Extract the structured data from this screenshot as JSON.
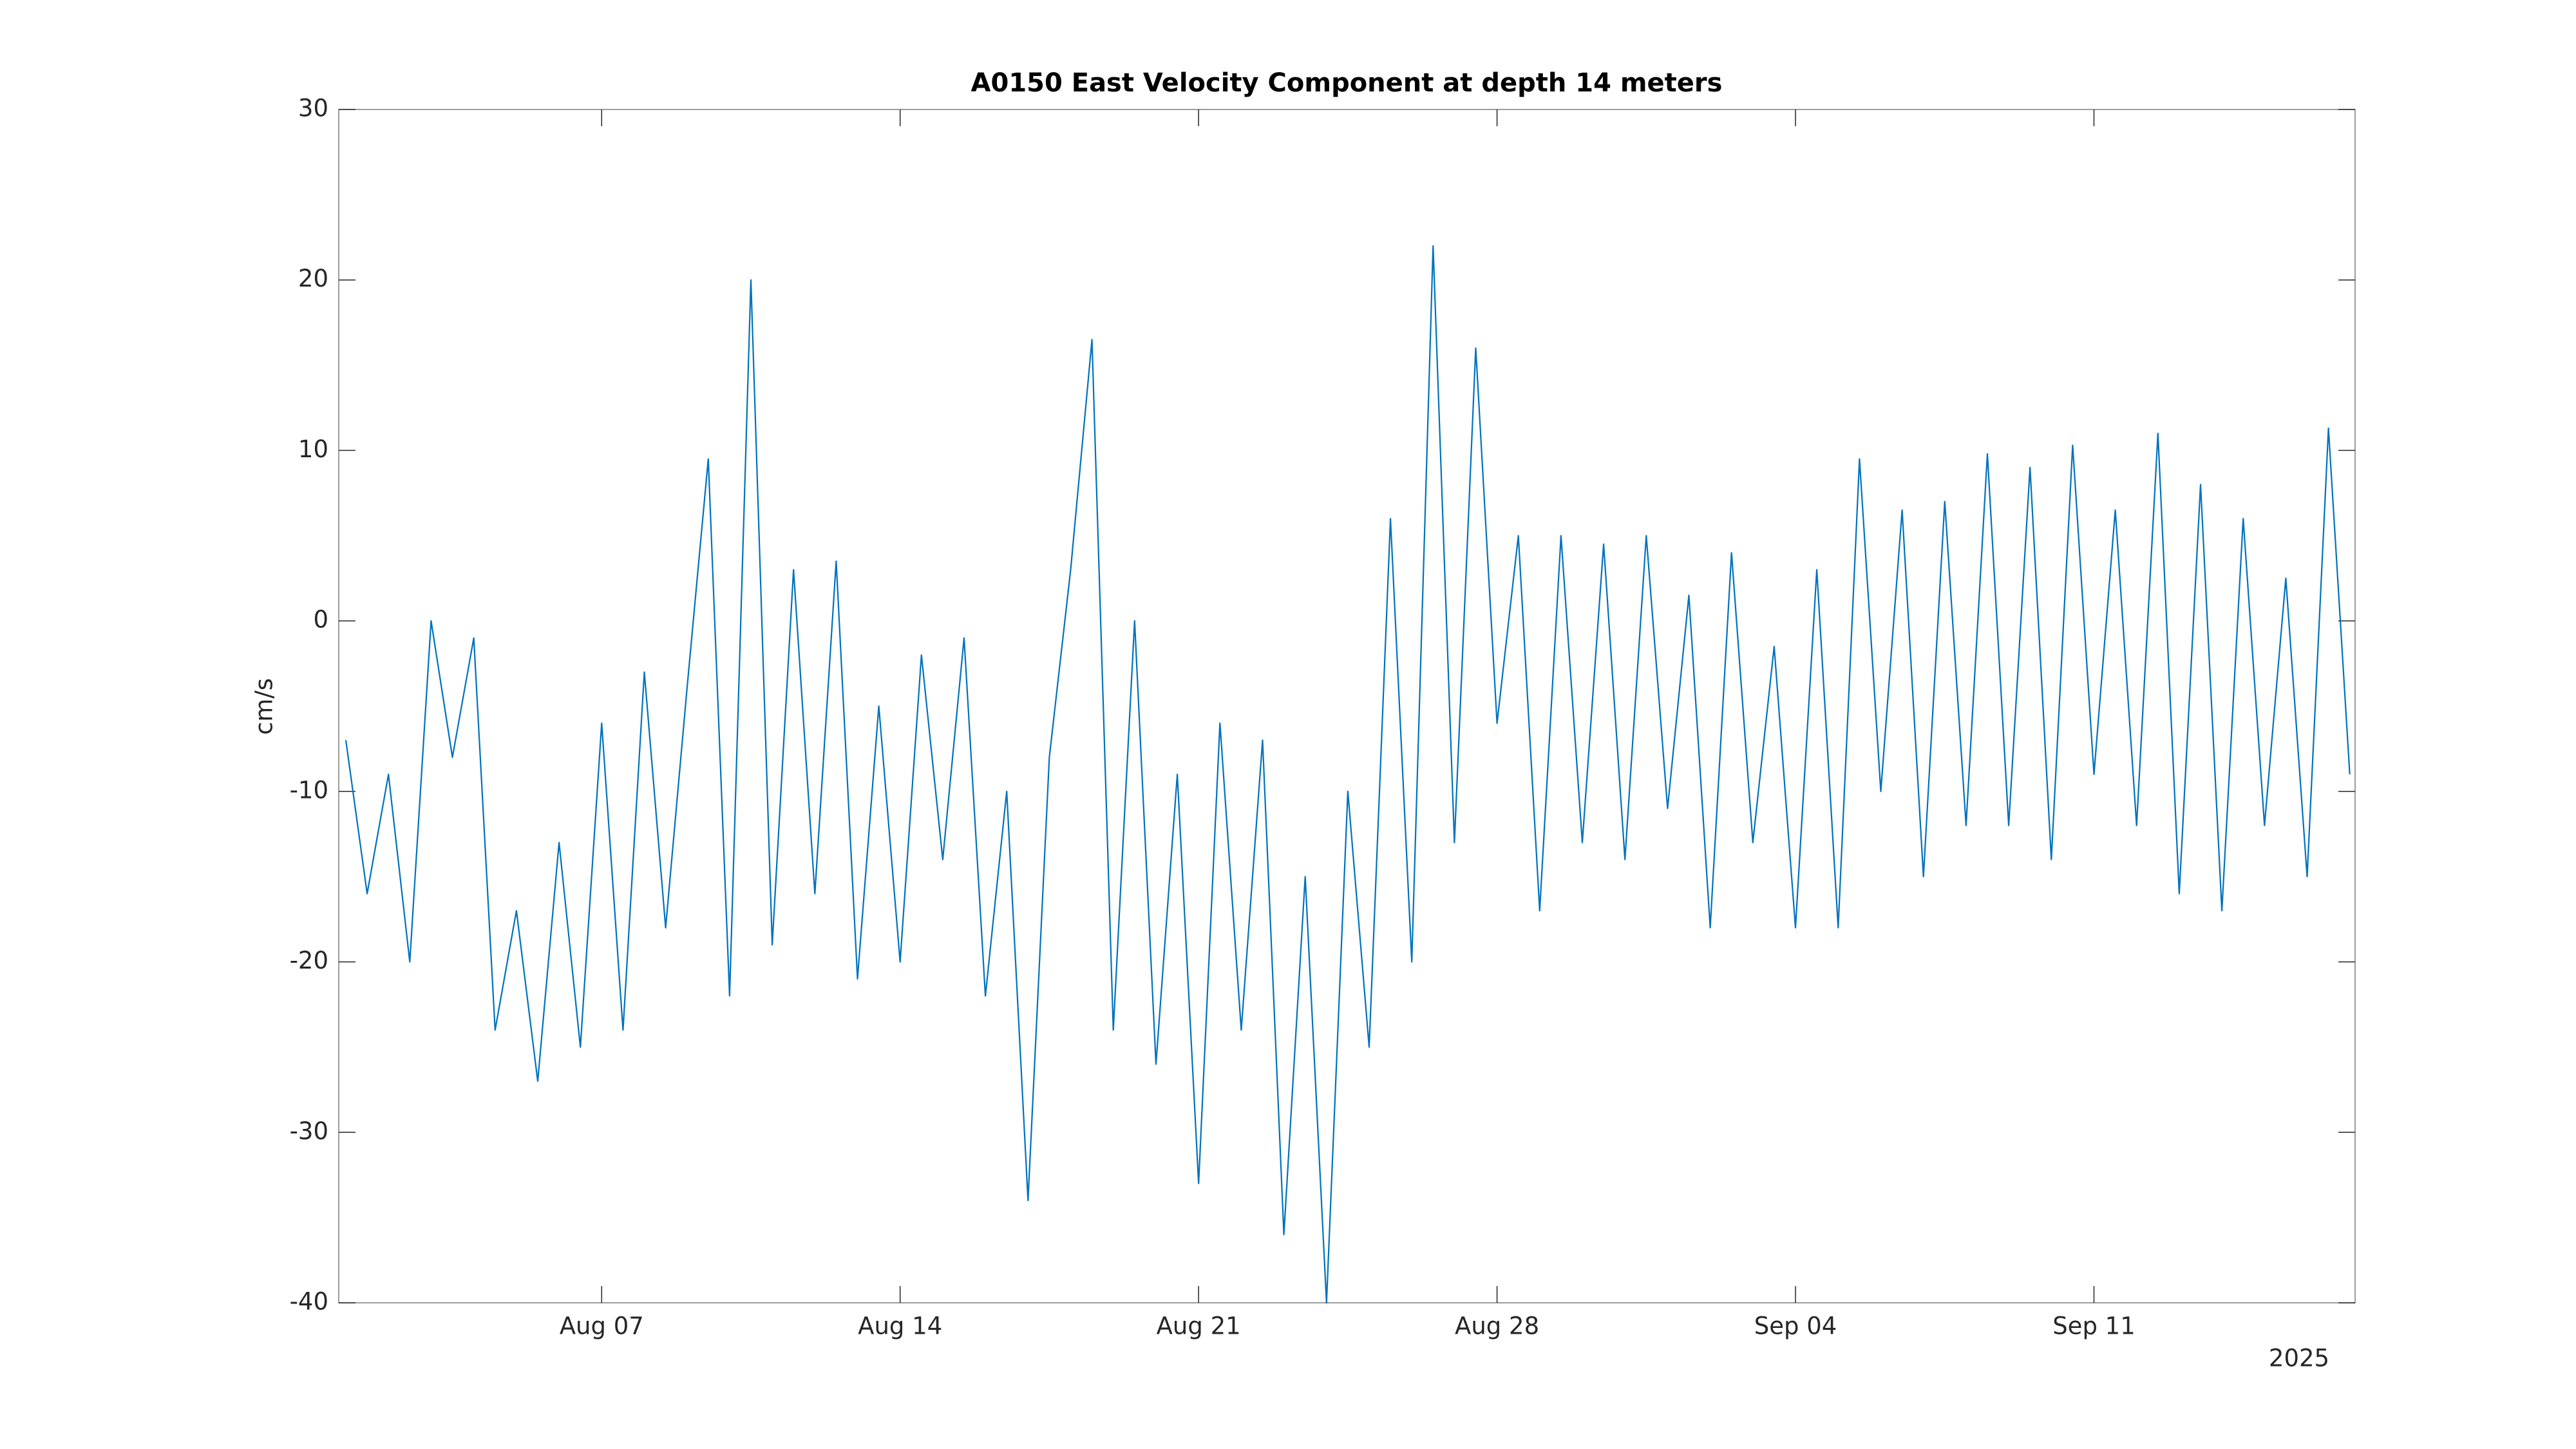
{
  "chart_data": {
    "type": "line",
    "title": "A0150 East Velocity Component at depth 14 meters",
    "ylabel": "cm/s",
    "x_secondary_label": "2025",
    "color": "#0072bd",
    "x": [
      "2025-08-01T00:00",
      "2025-08-01T12:00",
      "2025-08-02T00:00",
      "2025-08-02T12:00",
      "2025-08-03T00:00",
      "2025-08-03T12:00",
      "2025-08-04T00:00",
      "2025-08-04T12:00",
      "2025-08-05T00:00",
      "2025-08-05T12:00",
      "2025-08-06T00:00",
      "2025-08-06T12:00",
      "2025-08-07T00:00",
      "2025-08-07T12:00",
      "2025-08-08T00:00",
      "2025-08-08T12:00",
      "2025-08-09T00:00",
      "2025-08-09T12:00",
      "2025-08-10T00:00",
      "2025-08-10T12:00",
      "2025-08-11T00:00",
      "2025-08-11T12:00",
      "2025-08-12T00:00",
      "2025-08-12T12:00",
      "2025-08-13T00:00",
      "2025-08-13T12:00",
      "2025-08-14T00:00",
      "2025-08-14T12:00",
      "2025-08-15T00:00",
      "2025-08-15T12:00",
      "2025-08-16T00:00",
      "2025-08-16T12:00",
      "2025-08-17T00:00",
      "2025-08-17T12:00",
      "2025-08-18T00:00",
      "2025-08-18T12:00",
      "2025-08-19T00:00",
      "2025-08-19T12:00",
      "2025-08-20T00:00",
      "2025-08-20T12:00",
      "2025-08-21T00:00",
      "2025-08-21T12:00",
      "2025-08-22T00:00",
      "2025-08-22T12:00",
      "2025-08-23T00:00",
      "2025-08-23T12:00",
      "2025-08-24T00:00",
      "2025-08-24T12:00",
      "2025-08-25T00:00",
      "2025-08-25T12:00",
      "2025-08-26T00:00",
      "2025-08-26T12:00",
      "2025-08-27T00:00",
      "2025-08-27T12:00",
      "2025-08-28T00:00",
      "2025-08-28T12:00",
      "2025-08-29T00:00",
      "2025-08-29T12:00",
      "2025-08-30T00:00",
      "2025-08-30T12:00",
      "2025-08-31T00:00",
      "2025-08-31T12:00",
      "2025-09-01T00:00",
      "2025-09-01T12:00",
      "2025-09-02T00:00",
      "2025-09-02T12:00",
      "2025-09-03T00:00",
      "2025-09-03T12:00",
      "2025-09-04T00:00",
      "2025-09-04T12:00",
      "2025-09-05T00:00",
      "2025-09-05T12:00",
      "2025-09-06T00:00",
      "2025-09-06T12:00",
      "2025-09-07T00:00",
      "2025-09-07T12:00",
      "2025-09-08T00:00",
      "2025-09-08T12:00",
      "2025-09-09T00:00",
      "2025-09-09T12:00",
      "2025-09-10T00:00",
      "2025-09-10T12:00",
      "2025-09-11T00:00",
      "2025-09-11T12:00",
      "2025-09-12T00:00",
      "2025-09-12T12:00",
      "2025-09-13T00:00",
      "2025-09-13T12:00",
      "2025-09-14T00:00",
      "2025-09-14T12:00",
      "2025-09-15T00:00",
      "2025-09-15T12:00",
      "2025-09-16T00:00",
      "2025-09-16T12:00",
      "2025-09-17T00:00"
    ],
    "values": [
      -7,
      -16,
      -9,
      -20,
      0,
      -8,
      -1,
      -24,
      -17,
      -27,
      -13,
      -25,
      -6,
      -24,
      -3,
      -18,
      -4,
      9.5,
      -22,
      20,
      -19,
      3,
      -16,
      3.5,
      -21,
      -5,
      -20,
      -2,
      -14,
      -1,
      -22,
      -10,
      -34,
      -8,
      3,
      16.5,
      -24,
      0,
      -26,
      -9,
      -33,
      -6,
      -24,
      -7,
      -36,
      -15,
      -40,
      -10,
      -25,
      6,
      -20,
      22,
      -13,
      16,
      -6,
      5,
      -17,
      5,
      -13,
      4.5,
      -14,
      5,
      -11,
      1.5,
      -18,
      4,
      -13,
      -1.5,
      -18,
      3,
      -18,
      9.5,
      -10,
      6.5,
      -15,
      7,
      -12,
      9.8,
      -12,
      9,
      -14,
      10.3,
      -9,
      6.5,
      -12,
      11,
      -16,
      8,
      -17,
      6,
      -12,
      2.5,
      -15,
      11.3,
      -9
    ],
    "xlim": [
      "2025-07-31T20:00",
      "2025-09-17T03:00"
    ],
    "xticks": [
      {
        "value": "2025-08-07T00:00",
        "label": "Aug 07"
      },
      {
        "value": "2025-08-14T00:00",
        "label": "Aug 14"
      },
      {
        "value": "2025-08-21T00:00",
        "label": "Aug 21"
      },
      {
        "value": "2025-08-28T00:00",
        "label": "Aug 28"
      },
      {
        "value": "2025-09-04T00:00",
        "label": "Sep 04"
      },
      {
        "value": "2025-09-11T00:00",
        "label": "Sep 11"
      }
    ],
    "ylim": [
      -40,
      30
    ],
    "yticks": [
      -40,
      -30,
      -20,
      -10,
      0,
      10,
      20,
      30
    ],
    "grid": false
  }
}
